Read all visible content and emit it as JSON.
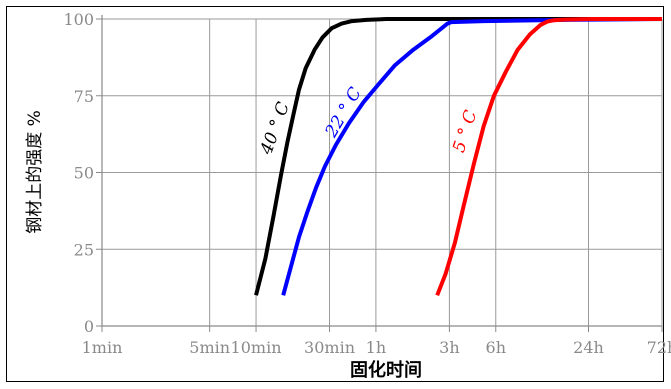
{
  "chart_data": {
    "type": "line",
    "xlabel": "固化时间",
    "ylabel": "钢材上的强度 %",
    "x_tick_labels": [
      "1min",
      "5min",
      "10min",
      "30min",
      "1h",
      "3h",
      "6h",
      "24h",
      "72h"
    ],
    "x_tick_minutes": [
      1,
      5,
      10,
      30,
      60,
      180,
      360,
      1440,
      4320
    ],
    "xscale": "log",
    "xlim_minutes": [
      1,
      4320
    ],
    "y_tick_labels": [
      "0",
      "25",
      "50",
      "75",
      "100"
    ],
    "y_ticks": [
      0,
      25,
      50,
      75,
      100
    ],
    "ylim": [
      0,
      100
    ],
    "grid": true,
    "series": [
      {
        "name": "40 ° C",
        "color": "#000000",
        "x_minutes": [
          10,
          11.5,
          13,
          14.5,
          16,
          17.5,
          19,
          21,
          24,
          27,
          31,
          36,
          42,
          52,
          70,
          100,
          200,
          400,
          1000,
          4320
        ],
        "y": [
          10,
          22,
          36,
          49,
          60,
          69,
          77,
          84,
          90,
          94,
          97,
          98.5,
          99.3,
          99.7,
          100,
          100,
          100,
          100,
          100,
          100
        ]
      },
      {
        "name": "22 ° C",
        "color": "#0000ff",
        "x_minutes": [
          15,
          17,
          19,
          21.5,
          24.5,
          28,
          33,
          40,
          50,
          63,
          80,
          105,
          135,
          175,
          185,
          300,
          1000,
          4320
        ],
        "y": [
          10,
          20,
          29,
          37,
          45,
          52,
          59,
          66,
          73,
          79,
          85,
          90,
          94,
          98.5,
          99,
          99.3,
          99.7,
          100
        ]
      },
      {
        "name": "5 ° C",
        "color": "#ff0000",
        "x_minutes": [
          150,
          170,
          195,
          225,
          260,
          300,
          350,
          420,
          500,
          600,
          700,
          780,
          860,
          1000,
          1500,
          4320
        ],
        "y": [
          10,
          17,
          27,
          40,
          53,
          65,
          75,
          83,
          90,
          95,
          98,
          99.2,
          99.6,
          99.8,
          100,
          100
        ]
      }
    ]
  }
}
